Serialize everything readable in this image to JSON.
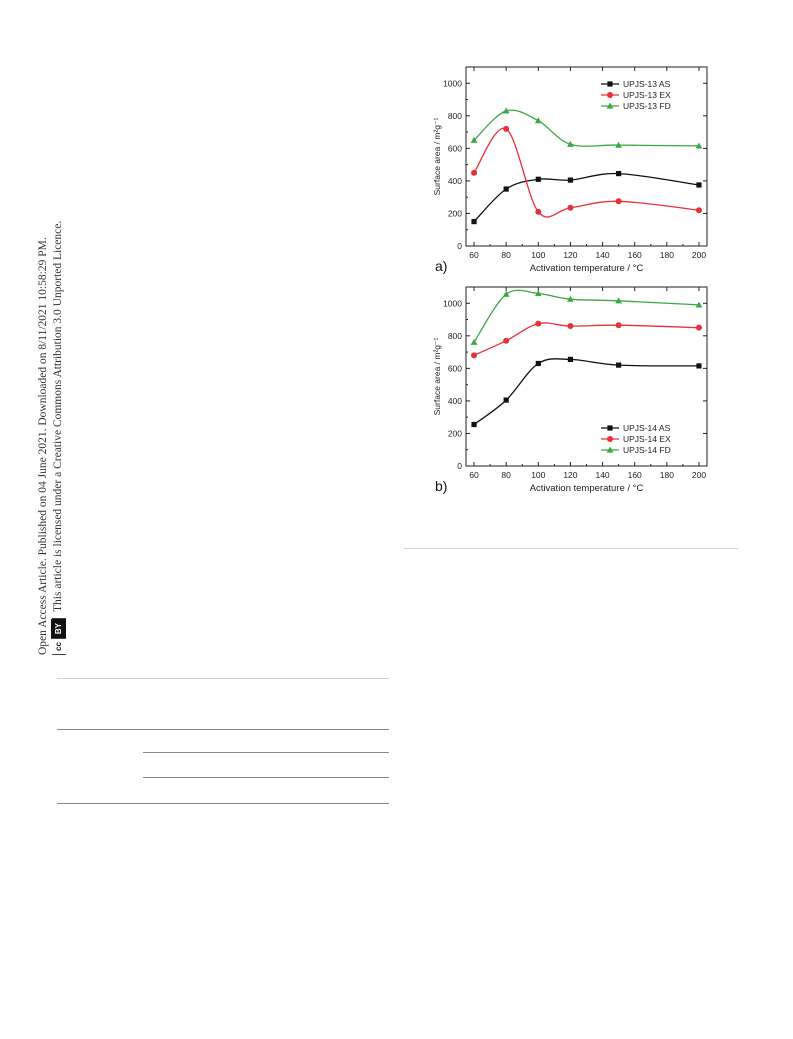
{
  "side_notice": {
    "line1": "Open Access Article. Published on 04 June 2021. Downloaded on 8/11/2021 10:58:29 PM.",
    "line2": "This article is licensed under a Creative Commons Attribution 3.0 Unported Licence.",
    "badge_cc": "cc",
    "badge_by": "BY"
  },
  "colors": {
    "black": "#111111",
    "red": "#e8303a",
    "green": "#3aa845"
  },
  "chart_data": [
    {
      "type": "scatter",
      "panel_label": "a)",
      "xlabel": "Activation temperature / °C",
      "ylabel": "Surface area / m²g⁻¹",
      "xlim": [
        55,
        205
      ],
      "ylim": [
        0,
        1100
      ],
      "xticks": [
        60,
        80,
        100,
        120,
        140,
        160,
        180,
        200
      ],
      "yticks": [
        0,
        200,
        400,
        600,
        800,
        1000
      ],
      "legend_position": "top-right",
      "x": [
        60,
        80,
        100,
        120,
        150,
        200
      ],
      "series": [
        {
          "name": "UPJS-13 AS",
          "marker": "square",
          "color": "#111111",
          "values": [
            150,
            350,
            410,
            405,
            445,
            375
          ]
        },
        {
          "name": "UPJS-13 EX",
          "marker": "circle",
          "color": "#e8303a",
          "values": [
            450,
            720,
            210,
            235,
            275,
            220
          ]
        },
        {
          "name": "UPJS-13 FD",
          "marker": "triangle",
          "color": "#3aa845",
          "values": [
            650,
            830,
            770,
            625,
            620,
            615
          ]
        }
      ]
    },
    {
      "type": "scatter",
      "panel_label": "b)",
      "xlabel": "Activation temperature / °C",
      "ylabel": "Surface area / m²g⁻¹",
      "xlim": [
        55,
        205
      ],
      "ylim": [
        0,
        1100
      ],
      "xticks": [
        60,
        80,
        100,
        120,
        140,
        160,
        180,
        200
      ],
      "yticks": [
        0,
        200,
        400,
        600,
        800,
        1000
      ],
      "legend_position": "bottom-right",
      "x": [
        60,
        80,
        100,
        120,
        150,
        200
      ],
      "series": [
        {
          "name": "UPJS-14 AS",
          "marker": "square",
          "color": "#111111",
          "values": [
            255,
            405,
            630,
            655,
            620,
            615
          ]
        },
        {
          "name": "UPJS-14 EX",
          "marker": "circle",
          "color": "#e8303a",
          "values": [
            680,
            770,
            875,
            860,
            865,
            850
          ]
        },
        {
          "name": "UPJS-14 FD",
          "marker": "triangle",
          "color": "#3aa845",
          "values": [
            760,
            1055,
            1060,
            1025,
            1015,
            990
          ]
        }
      ]
    }
  ]
}
